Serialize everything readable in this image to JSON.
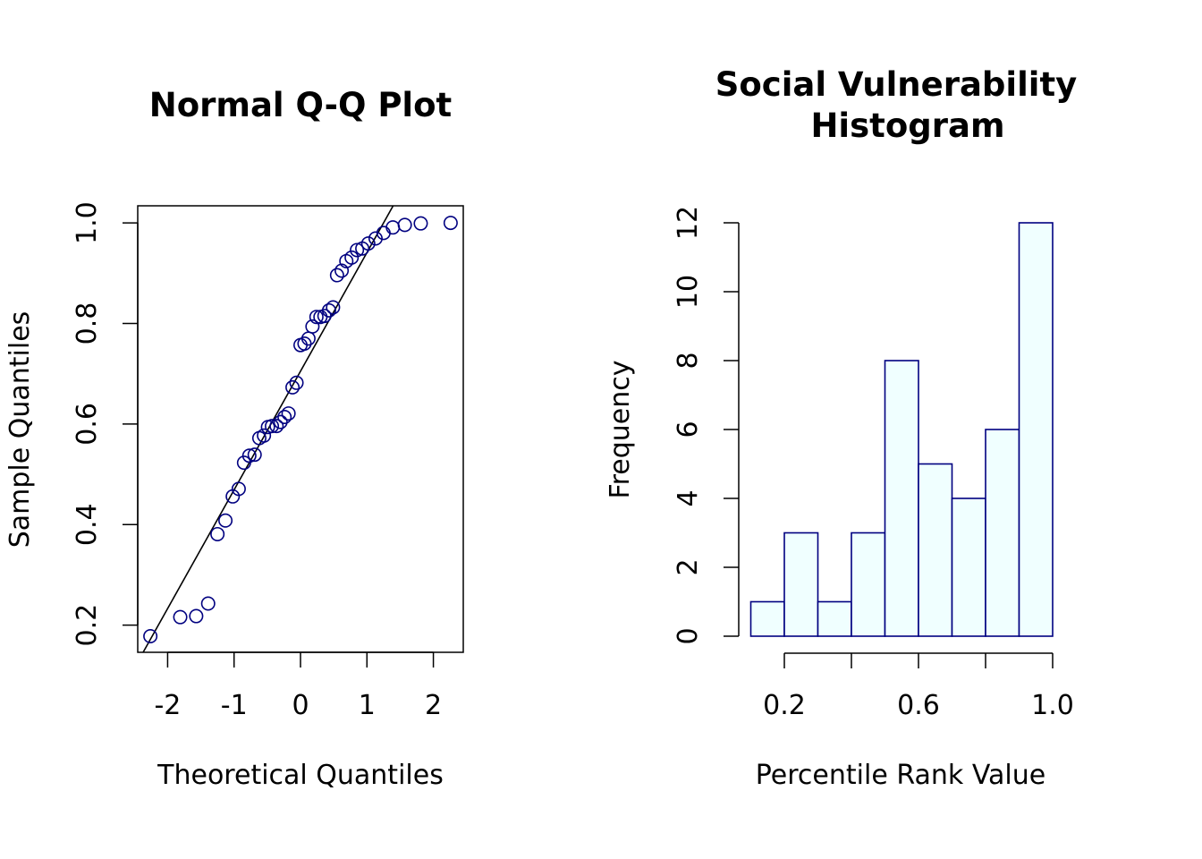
{
  "chart_data": [
    {
      "type": "scatter",
      "title": "Normal Q-Q Plot",
      "xlabel": "Theoretical Quantiles",
      "ylabel": "Sample Quantiles",
      "xlim": [
        -2.45,
        2.45
      ],
      "ylim": [
        0.146,
        1.034
      ],
      "xticks": [
        -2,
        -1,
        0,
        1,
        2
      ],
      "xtick_labels": [
        "-2",
        "-1",
        "0",
        "1",
        "2"
      ],
      "yticks": [
        0.2,
        0.4,
        0.6,
        0.8,
        1.0
      ],
      "ytick_labels": [
        "0.2",
        "0.4",
        "0.6",
        "0.8",
        "1.0"
      ],
      "point_color": "#000080",
      "line_color": "#000000",
      "reference_line": {
        "intercept": 0.705,
        "slope": 0.236
      },
      "points": [
        {
          "x": -2.26,
          "y": 0.178
        },
        {
          "x": -1.81,
          "y": 0.216
        },
        {
          "x": -1.57,
          "y": 0.218
        },
        {
          "x": -1.39,
          "y": 0.243
        },
        {
          "x": -1.25,
          "y": 0.381
        },
        {
          "x": -1.13,
          "y": 0.408
        },
        {
          "x": -1.02,
          "y": 0.456
        },
        {
          "x": -0.93,
          "y": 0.471
        },
        {
          "x": -0.85,
          "y": 0.523
        },
        {
          "x": -0.77,
          "y": 0.537
        },
        {
          "x": -0.69,
          "y": 0.539
        },
        {
          "x": -0.62,
          "y": 0.572
        },
        {
          "x": -0.55,
          "y": 0.577
        },
        {
          "x": -0.49,
          "y": 0.594
        },
        {
          "x": -0.43,
          "y": 0.596
        },
        {
          "x": -0.36,
          "y": 0.596
        },
        {
          "x": -0.3,
          "y": 0.604
        },
        {
          "x": -0.24,
          "y": 0.614
        },
        {
          "x": -0.18,
          "y": 0.621
        },
        {
          "x": -0.12,
          "y": 0.673
        },
        {
          "x": -0.06,
          "y": 0.682
        },
        {
          "x": 0.0,
          "y": 0.757
        },
        {
          "x": 0.06,
          "y": 0.76
        },
        {
          "x": 0.12,
          "y": 0.77
        },
        {
          "x": 0.18,
          "y": 0.794
        },
        {
          "x": 0.24,
          "y": 0.813
        },
        {
          "x": 0.3,
          "y": 0.813
        },
        {
          "x": 0.36,
          "y": 0.815
        },
        {
          "x": 0.43,
          "y": 0.826
        },
        {
          "x": 0.49,
          "y": 0.832
        },
        {
          "x": 0.55,
          "y": 0.896
        },
        {
          "x": 0.62,
          "y": 0.905
        },
        {
          "x": 0.69,
          "y": 0.924
        },
        {
          "x": 0.77,
          "y": 0.931
        },
        {
          "x": 0.85,
          "y": 0.946
        },
        {
          "x": 0.93,
          "y": 0.949
        },
        {
          "x": 1.02,
          "y": 0.959
        },
        {
          "x": 1.13,
          "y": 0.969
        },
        {
          "x": 1.25,
          "y": 0.98
        },
        {
          "x": 1.39,
          "y": 0.991
        },
        {
          "x": 1.57,
          "y": 0.996
        },
        {
          "x": 1.81,
          "y": 0.999
        },
        {
          "x": 2.26,
          "y": 1.0
        }
      ]
    },
    {
      "type": "bar",
      "subtype": "histogram",
      "title_lines": [
        "Social Vulnerability",
        "Histogram"
      ],
      "xlabel": "Percentile Rank Value",
      "ylabel": "Frequency",
      "bin_edges": [
        0.1,
        0.2,
        0.3,
        0.4,
        0.5,
        0.6,
        0.7,
        0.8,
        0.9,
        1.0
      ],
      "values": [
        1,
        3,
        1,
        3,
        8,
        5,
        4,
        6,
        12
      ],
      "xlim": [
        0.1,
        1.0
      ],
      "ylim": [
        0,
        12
      ],
      "xticks": [
        0.2,
        0.4,
        0.6,
        0.8,
        1.0
      ],
      "xtick_labels": [
        "0.2",
        "",
        "0.6",
        "",
        "1.0"
      ],
      "yticks": [
        0,
        2,
        4,
        6,
        8,
        10,
        12
      ],
      "ytick_labels": [
        "0",
        "2",
        "4",
        "6",
        "8",
        "10",
        "12"
      ],
      "bar_fill": "#f0ffff",
      "bar_border": "#000080"
    }
  ]
}
